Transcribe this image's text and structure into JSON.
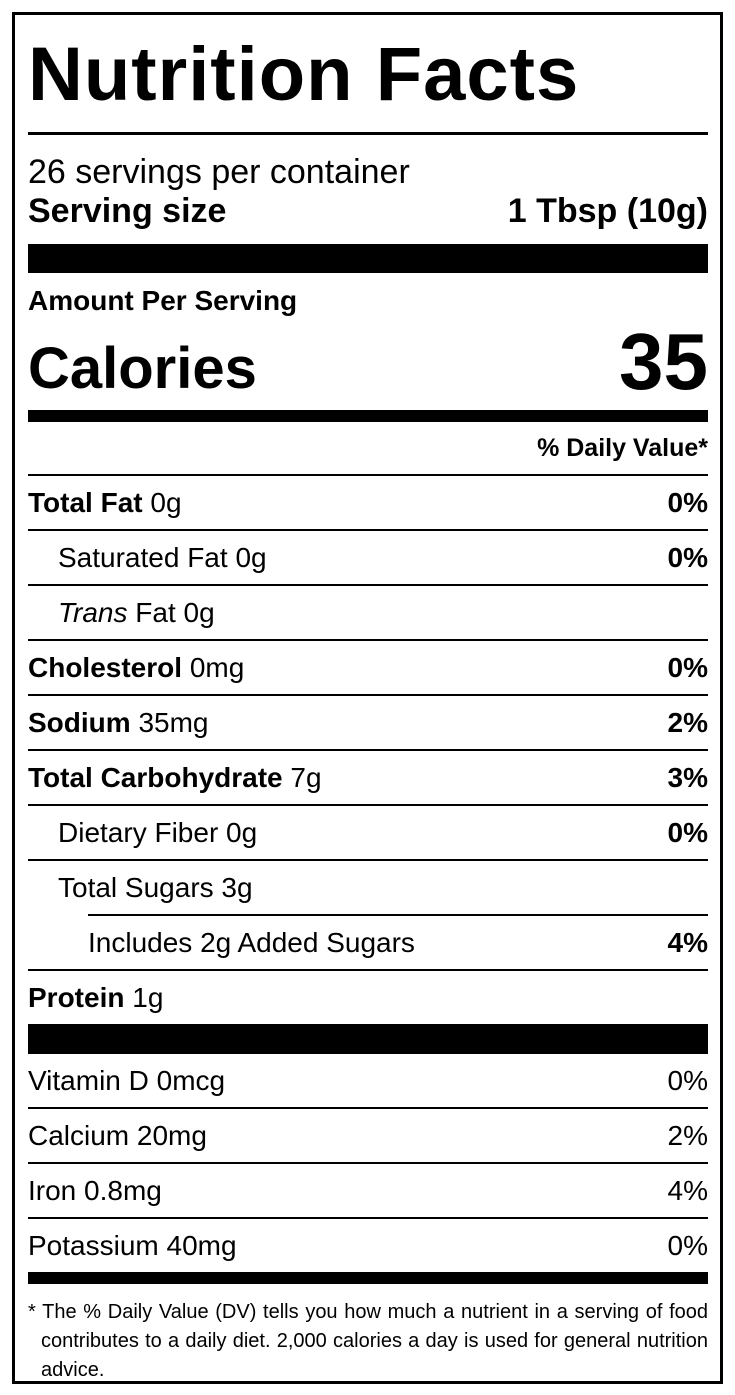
{
  "title": "Nutrition Facts",
  "servings_per_container": "26 servings per container",
  "serving_size": {
    "label": "Serving size",
    "value": "1 Tbsp (10g)"
  },
  "amount_per_serving": "Amount Per Serving",
  "calories": {
    "label": "Calories",
    "value": "35"
  },
  "daily_value_header": "% Daily Value*",
  "nutrients": [
    {
      "name": "Total Fat",
      "amount": "0g",
      "dv": "0%"
    },
    {
      "name": "Saturated Fat",
      "amount": "0g",
      "dv": "0%"
    },
    {
      "name": "Trans",
      "suffix": "Fat",
      "amount": "0g",
      "dv": ""
    },
    {
      "name": "Cholesterol",
      "amount": "0mg",
      "dv": "0%"
    },
    {
      "name": "Sodium",
      "amount": "35mg",
      "dv": "2%"
    },
    {
      "name": "Total Carbohydrate",
      "amount": "7g",
      "dv": "3%"
    },
    {
      "name": "Dietary Fiber",
      "amount": "0g",
      "dv": "0%"
    },
    {
      "name": "Total Sugars",
      "amount": "3g",
      "dv": ""
    },
    {
      "name": "Includes 2g Added Sugars",
      "dv": "4%"
    },
    {
      "name": "Protein",
      "amount": "1g",
      "dv": ""
    }
  ],
  "vitamins": [
    {
      "name": "Vitamin D 0mcg",
      "dv": "0%"
    },
    {
      "name": "Calcium 20mg",
      "dv": "2%"
    },
    {
      "name": "Iron 0.8mg",
      "dv": "4%"
    },
    {
      "name": "Potassium 40mg",
      "dv": "0%"
    }
  ],
  "footnote": "* The % Daily Value (DV) tells you how much a nutrient in a serving of food contributes to a daily diet. 2,000 calories a day is used for general nutrition advice."
}
